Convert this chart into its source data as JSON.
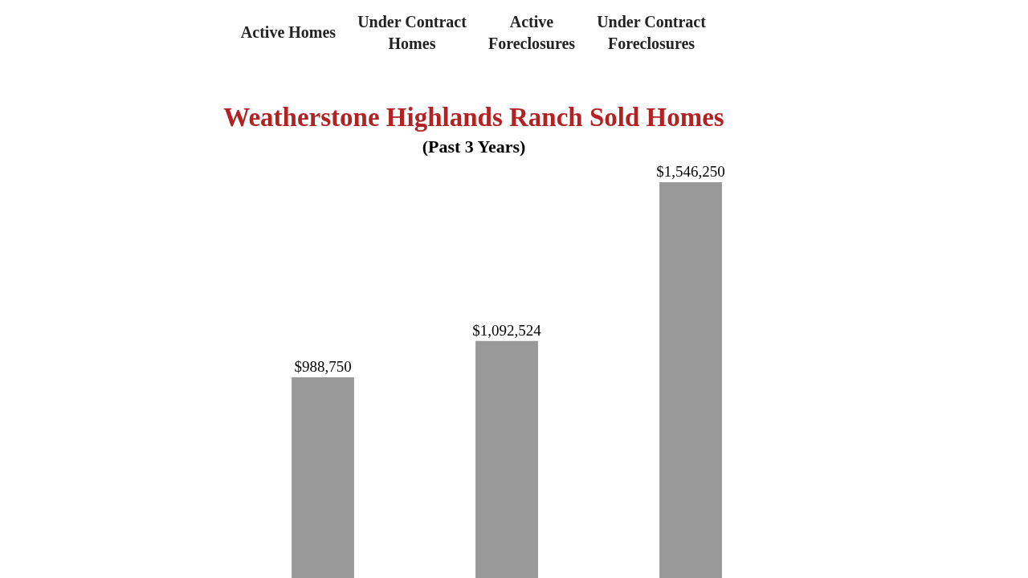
{
  "chart_data": {
    "type": "bar",
    "title": "Weatherstone Highlands Ranch Sold Homes",
    "subtitle": "(Past 3 Years)",
    "categories": [
      null,
      null,
      null
    ],
    "values": [
      988750,
      1092524,
      1546250
    ],
    "value_labels": [
      "$988,750",
      "$1,092,524",
      "$1,546,250"
    ],
    "color": "#999999",
    "tick_labels": false,
    "annotations": [
      "Active Homes",
      "Under Contract\nHomes",
      "Active\nForeclosures",
      "Under Contract\nForeclosures"
    ]
  }
}
